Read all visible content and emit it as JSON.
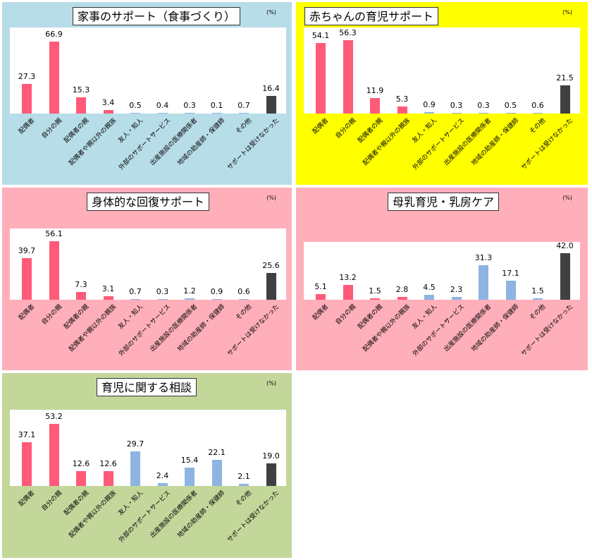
{
  "chart_data": [
    {
      "type": "bar",
      "title": "家事のサポート（食事づくり）",
      "unit": "(%)",
      "background": "#b7dde8",
      "categories": [
        "配偶者",
        "自分の親",
        "配偶者の親",
        "配偶者や親以外の親族",
        "友人・知人",
        "外部のサポートサービス",
        "出産施設の医療関係者",
        "地域の助産師・保健師",
        "その他",
        "サポートは受けなかった"
      ],
      "values": [
        27.3,
        66.9,
        15.3,
        3.4,
        0.5,
        0.4,
        0.3,
        0.1,
        0.7,
        16.4
      ],
      "labels": [
        "27.3",
        "66.9",
        "15.3",
        "3.4",
        "0.5",
        "0.4",
        "0.3",
        "0.1",
        "0.7",
        "16.4"
      ],
      "colors": [
        "#ff5a78",
        "#ff5a78",
        "#ff5a78",
        "#ff5a78",
        "#8db4e2",
        "#8db4e2",
        "#8db4e2",
        "#8db4e2",
        "#8db4e2",
        "#404040"
      ],
      "ylim": [
        0,
        80
      ]
    },
    {
      "type": "bar",
      "title": "赤ちゃんの育児サポート",
      "unit": "(%)",
      "background": "#ffff00",
      "categories": [
        "配偶者",
        "自分の親",
        "配偶者の親",
        "配偶者や親以外の親族",
        "友人・知人",
        "外部のサポートサービス",
        "出産施設の医療関係者",
        "地域の助産師・保健師",
        "その他",
        "サポートは受けなかった"
      ],
      "values": [
        54.1,
        56.3,
        11.9,
        5.3,
        0.9,
        0.3,
        0.3,
        0.5,
        0.6,
        21.5
      ],
      "labels": [
        "54.1",
        "56.3",
        "11.9",
        "5.3",
        "0.9",
        "0.3",
        "0.3",
        "0.5",
        "0.6",
        "21.5"
      ],
      "colors": [
        "#ff5a78",
        "#ff5a78",
        "#ff5a78",
        "#ff5a78",
        "#8db4e2",
        "#8db4e2",
        "#8db4e2",
        "#8db4e2",
        "#8db4e2",
        "#404040"
      ],
      "ylim": [
        0,
        66
      ]
    },
    {
      "type": "bar",
      "title": "身体的な回復サポート",
      "unit": "(%)",
      "background": "#ffafba",
      "categories": [
        "配偶者",
        "自分の親",
        "配偶者の親",
        "配偶者や親以外の親族",
        "友人・知人",
        "外部のサポートサービス",
        "出産施設の医療関係者",
        "地域の助産師・保健師",
        "その他",
        "サポートは受けなかった"
      ],
      "values": [
        39.7,
        56.1,
        7.3,
        3.1,
        0.7,
        0.3,
        1.2,
        0.9,
        0.6,
        25.6
      ],
      "labels": [
        "39.7",
        "56.1",
        "7.3",
        "3.1",
        "0.7",
        "0.3",
        "1.2",
        "0.9",
        "0.6",
        "25.6"
      ],
      "colors": [
        "#ff5a78",
        "#ff5a78",
        "#ff5a78",
        "#ff5a78",
        "#8db4e2",
        "#8db4e2",
        "#8db4e2",
        "#8db4e2",
        "#8db4e2",
        "#404040"
      ],
      "ylim": [
        0,
        68
      ]
    },
    {
      "type": "bar",
      "title": "母乳育児・乳房ケア",
      "unit": "(%)",
      "background": "#ffafba",
      "categories": [
        "配偶者",
        "自分の親",
        "配偶者の親",
        "配偶者や親以外の親族",
        "友人・知人",
        "外部のサポートサービス",
        "出産施設の医療関係者",
        "地域の助産師・保健師",
        "その他",
        "サポートは受けなかった"
      ],
      "values": [
        5.1,
        13.2,
        1.5,
        2.8,
        4.5,
        2.3,
        31.3,
        17.1,
        1.5,
        42.0
      ],
      "labels": [
        "5.1",
        "13.2",
        "1.5",
        "2.8",
        "4.5",
        "2.3",
        "31.3",
        "17.1",
        "1.5",
        "42.0"
      ],
      "colors": [
        "#ff5a78",
        "#ff5a78",
        "#ff5a78",
        "#ff5a78",
        "#8db4e2",
        "#8db4e2",
        "#8db4e2",
        "#8db4e2",
        "#8db4e2",
        "#404040"
      ],
      "ylim": [
        0,
        52
      ]
    },
    {
      "type": "bar",
      "title": "育児に関する相談",
      "unit": "(%)",
      "background": "#c4d79b",
      "categories": [
        "配偶者",
        "自分の親",
        "配偶者の親",
        "配偶者や親以外の親族",
        "友人・知人",
        "外部のサポートサービス",
        "出産施設の医療関係者",
        "地域の助産師・保健師",
        "その他",
        "サポートは受けなかった"
      ],
      "values": [
        37.1,
        53.2,
        12.6,
        12.6,
        29.7,
        2.4,
        15.4,
        22.1,
        2.1,
        19.0
      ],
      "labels": [
        "37.1",
        "53.2",
        "12.6",
        "12.6",
        "29.7",
        "2.4",
        "15.4",
        "22.1",
        "2.1",
        "19.0"
      ],
      "colors": [
        "#ff5a78",
        "#ff5a78",
        "#ff5a78",
        "#ff5a78",
        "#8db4e2",
        "#8db4e2",
        "#8db4e2",
        "#8db4e2",
        "#8db4e2",
        "#404040"
      ],
      "ylim": [
        0,
        65
      ]
    }
  ]
}
